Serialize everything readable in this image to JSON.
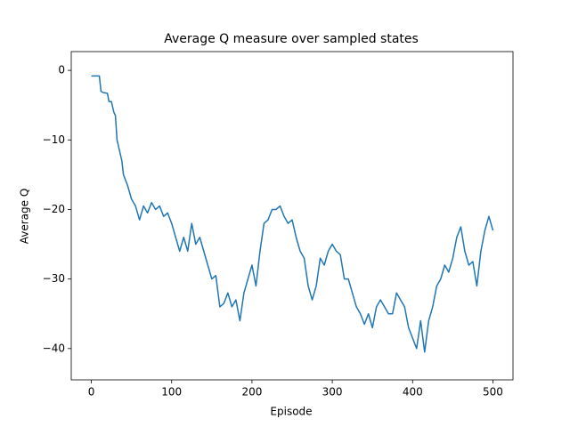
{
  "chart_data": {
    "type": "line",
    "title": "Average Q measure over sampled states",
    "xlabel": "Episode",
    "ylabel": "Average Q",
    "x": [
      0,
      5,
      10,
      12,
      15,
      20,
      22,
      25,
      28,
      30,
      32,
      35,
      38,
      40,
      45,
      50,
      55,
      60,
      65,
      70,
      75,
      80,
      85,
      90,
      95,
      100,
      105,
      110,
      115,
      120,
      125,
      130,
      135,
      140,
      145,
      150,
      155,
      160,
      165,
      170,
      175,
      180,
      185,
      190,
      195,
      200,
      205,
      210,
      215,
      220,
      225,
      230,
      235,
      240,
      245,
      250,
      255,
      260,
      265,
      270,
      275,
      280,
      285,
      290,
      295,
      300,
      305,
      310,
      315,
      320,
      325,
      330,
      335,
      340,
      345,
      350,
      355,
      360,
      365,
      370,
      375,
      380,
      385,
      390,
      395,
      400,
      405,
      410,
      415,
      420,
      425,
      430,
      435,
      440,
      445,
      450,
      455,
      460,
      465,
      470,
      475,
      480,
      485,
      490,
      495,
      500
    ],
    "series": [
      {
        "color": "#1f77b4",
        "values": [
          -0.8,
          -0.8,
          -0.8,
          -3,
          -3.2,
          -3.3,
          -4.5,
          -4.5,
          -6,
          -6.5,
          -10,
          -11.5,
          -13,
          -15,
          -16.5,
          -18.5,
          -19.5,
          -21.5,
          -19.5,
          -20.5,
          -19,
          -20,
          -19.5,
          -21,
          -20.5,
          -22,
          -24,
          -26,
          -24,
          -26,
          -22,
          -25,
          -24,
          -26,
          -28,
          -30,
          -29.5,
          -34,
          -33.5,
          -32,
          -34,
          -33,
          -36,
          -32,
          -30,
          -28,
          -31,
          -26,
          -22,
          -21.5,
          -20,
          -20,
          -19.5,
          -21,
          -22,
          -21.5,
          -24,
          -26,
          -27,
          -31,
          -33,
          -31,
          -27,
          -28,
          -26,
          -25,
          -26,
          -26.5,
          -30,
          -30,
          -32,
          -34,
          -35,
          -36.5,
          -35,
          -37,
          -34,
          -33,
          -34,
          -35,
          -35,
          -32,
          -33,
          -34,
          -37,
          -38.5,
          -40,
          -36,
          -40.5,
          -36,
          -34,
          -31,
          -30,
          -28,
          -29,
          -27,
          -24,
          -22.5,
          -26,
          -28,
          -27.5,
          -31,
          -26,
          -23,
          -21,
          -23
        ]
      }
    ],
    "xlim": [
      -25,
      525
    ],
    "ylim": [
      -44.5,
      2.7
    ],
    "xticks": [
      0,
      100,
      200,
      300,
      400,
      500
    ],
    "yticks": [
      0,
      {
        "value": -10,
        "label": "−10"
      },
      {
        "value": -20,
        "label": "−20"
      },
      {
        "value": -30,
        "label": "−30"
      },
      {
        "value": -40,
        "label": "−40"
      }
    ]
  }
}
